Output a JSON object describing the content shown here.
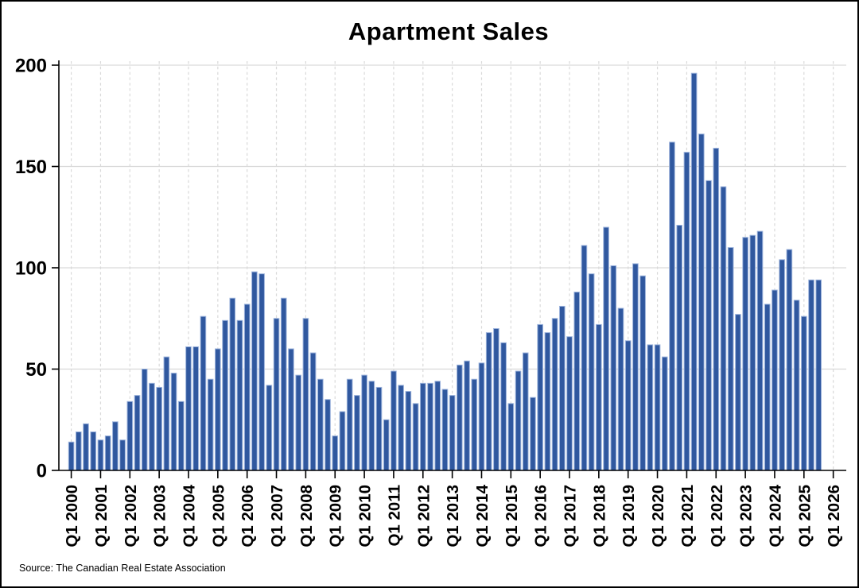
{
  "title": "Apartment Sales",
  "source_note": "Source: The Canadian Real Estate Association",
  "colors": {
    "bar_fill": "#30589F",
    "bar_edge": "#9CB3DC",
    "gridline": "#D9D9D9",
    "axis": "#000000",
    "text": "#000000",
    "background": "#FFFFFF"
  },
  "chart_data": {
    "type": "bar",
    "title": "Apartment Sales",
    "xlabel": "",
    "ylabel": "",
    "ylim": [
      0,
      200
    ],
    "y_ticks": [
      0,
      50,
      100,
      150,
      200
    ],
    "grid": {
      "horizontal": "solid",
      "vertical": "dashed-yearly"
    },
    "legend": false,
    "x_tick_labels": [
      "Q1 2000",
      "Q1 2001",
      "Q1 2002",
      "Q1 2003",
      "Q1 2004",
      "Q1 2005",
      "Q1 2006",
      "Q1 2007",
      "Q1 2008",
      "Q1 2009",
      "Q1 2010",
      "Q1 2011",
      "Q1 2012",
      "Q1 2013",
      "Q1 2014",
      "Q1 2015",
      "Q1 2016",
      "Q1 2017",
      "Q1 2018",
      "Q1 2019",
      "Q1 2020",
      "Q1 2021",
      "Q1 2022",
      "Q1 2023",
      "Q1 2024",
      "Q1 2025",
      "Q1 2026"
    ],
    "start_quarter": "Q1 2000",
    "end_quarter": "Q3 2025",
    "values_by_year": [
      {
        "year": 2000,
        "values": [
          14,
          19,
          23,
          19
        ]
      },
      {
        "year": 2001,
        "values": [
          15,
          17,
          24,
          15
        ]
      },
      {
        "year": 2002,
        "values": [
          34,
          37,
          50,
          43
        ]
      },
      {
        "year": 2003,
        "values": [
          41,
          56,
          48,
          34
        ]
      },
      {
        "year": 2004,
        "values": [
          61,
          61,
          76,
          45
        ]
      },
      {
        "year": 2005,
        "values": [
          60,
          74,
          85,
          74
        ]
      },
      {
        "year": 2006,
        "values": [
          82,
          98,
          97,
          42
        ]
      },
      {
        "year": 2007,
        "values": [
          75,
          85,
          60,
          47
        ]
      },
      {
        "year": 2008,
        "values": [
          75,
          58,
          45,
          35
        ]
      },
      {
        "year": 2009,
        "values": [
          17,
          29,
          45,
          37
        ]
      },
      {
        "year": 2010,
        "values": [
          47,
          44,
          41,
          25
        ]
      },
      {
        "year": 2011,
        "values": [
          49,
          42,
          39,
          33
        ]
      },
      {
        "year": 2012,
        "values": [
          43,
          43,
          44,
          40
        ]
      },
      {
        "year": 2013,
        "values": [
          37,
          52,
          54,
          45
        ]
      },
      {
        "year": 2014,
        "values": [
          53,
          68,
          70,
          63
        ]
      },
      {
        "year": 2015,
        "values": [
          33,
          49,
          58,
          36
        ]
      },
      {
        "year": 2016,
        "values": [
          72,
          68,
          75,
          81
        ]
      },
      {
        "year": 2017,
        "values": [
          66,
          88,
          111,
          97
        ]
      },
      {
        "year": 2018,
        "values": [
          72,
          120,
          101,
          80
        ]
      },
      {
        "year": 2019,
        "values": [
          64,
          102,
          96,
          62
        ]
      },
      {
        "year": 2020,
        "values": [
          62,
          56,
          162,
          121
        ]
      },
      {
        "year": 2021,
        "values": [
          157,
          196,
          166,
          143
        ]
      },
      {
        "year": 2022,
        "values": [
          159,
          140,
          110,
          77
        ]
      },
      {
        "year": 2023,
        "values": [
          115,
          116,
          118,
          82
        ]
      },
      {
        "year": 2024,
        "values": [
          89,
          104,
          109,
          84
        ]
      },
      {
        "year": 2025,
        "values": [
          76,
          94,
          94
        ]
      }
    ]
  }
}
